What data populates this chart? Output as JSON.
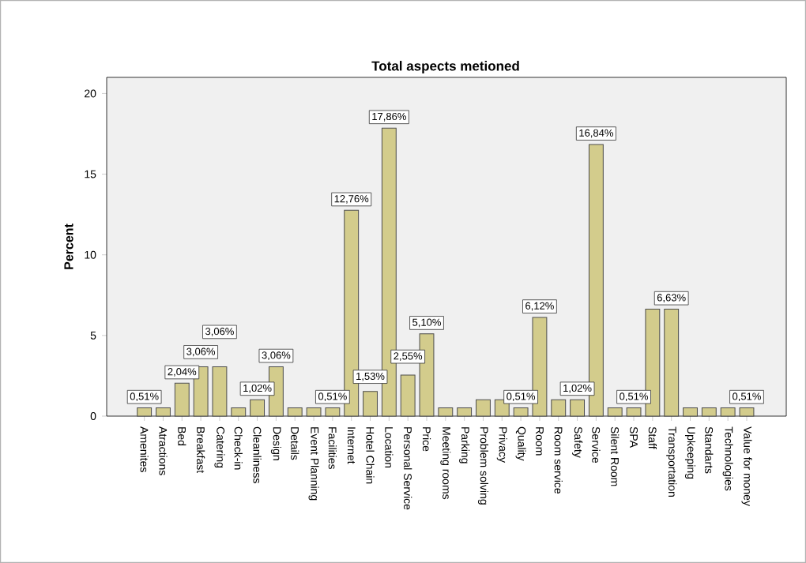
{
  "chart_data": {
    "type": "bar",
    "title": "Total aspects metioned",
    "ylabel": "Percent",
    "categories": [
      "Amenites",
      "Atractions",
      "Bed",
      "Breakfast",
      "Catering",
      "Check-in",
      "Cleanliness",
      "Design",
      "Details",
      "Event Planning",
      "Facilities",
      "Internet",
      "Hotel Chain",
      "Location",
      "Personal Service",
      "Price",
      "Meeting rooms",
      "Parking",
      "Problem solving",
      "Privacy",
      "Quality",
      "Room",
      "Room service",
      "Safety",
      "Service",
      "Silent Room",
      "SPA",
      "Staff",
      "Transportation",
      "Upkeeping",
      "Standarts",
      "Technologies",
      "Value for money"
    ],
    "values": [
      0.51,
      0.51,
      2.04,
      3.06,
      3.06,
      0.51,
      1.02,
      3.06,
      0.51,
      0.51,
      0.51,
      12.76,
      1.53,
      17.86,
      2.55,
      5.1,
      0.51,
      0.51,
      1.02,
      1.02,
      0.51,
      6.12,
      1.02,
      1.02,
      16.84,
      0.51,
      0.51,
      6.63,
      6.63,
      0.51,
      0.51,
      0.51,
      0.51
    ],
    "value_labels": [
      "0,51%",
      null,
      "2,04%",
      "3,06%",
      "3,06%",
      null,
      "1,02%",
      "3,06%",
      null,
      null,
      "0,51%",
      "12,76%",
      "1,53%",
      "17,86%",
      "2,55%",
      "5,10%",
      null,
      null,
      null,
      null,
      "0,51%",
      "6,12%",
      null,
      "1,02%",
      "16,84%",
      null,
      "0,51%",
      null,
      "6,63%",
      null,
      null,
      null,
      "0,51%"
    ],
    "color": "#d3cc8c",
    "ylim": [
      0,
      21
    ],
    "yticks": [
      0,
      5,
      10,
      15,
      20
    ],
    "grid": false
  }
}
